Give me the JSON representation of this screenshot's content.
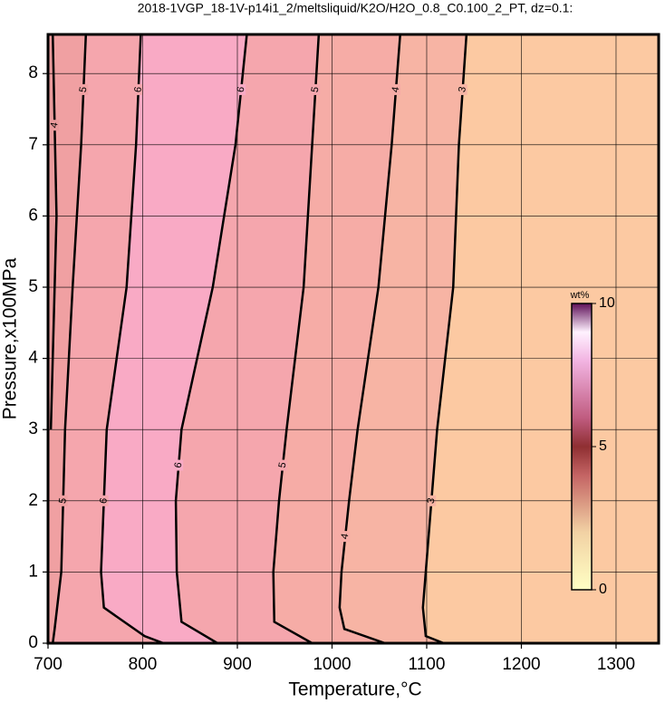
{
  "chart_data": {
    "type": "contour",
    "title": "2018-1VGP_18-1V-p14i1_2/meltsliquid/K2O/H2O_0.8_C0.100_2_PT, dz=0.1:",
    "x_label": "Temperature,°C",
    "y_label": "Pressure,x100MPa",
    "xlim": [
      700,
      1345
    ],
    "ylim": [
      0,
      8.55
    ],
    "xticks": [
      700,
      800,
      900,
      1000,
      1100,
      1200,
      1300
    ],
    "yticks": [
      0,
      1,
      2,
      3,
      4,
      5,
      6,
      7,
      8
    ],
    "grid": true,
    "background": "#fcc9a2",
    "line_color": "#000000",
    "contours": [
      {
        "level": 3,
        "fill": "#f7b4a4",
        "x": [
          1118,
          1099,
          1096,
          1099,
          1111,
          1128,
          1134,
          1142
        ],
        "y": [
          0,
          0.1,
          0.5,
          1,
          3,
          5,
          7,
          8.55
        ]
      },
      {
        "level": 4,
        "fill": "#f6aca6",
        "x": [
          1056,
          1013,
          1008,
          1010,
          1018,
          1027,
          1049,
          1063,
          1072
        ],
        "y": [
          0,
          0.2,
          0.5,
          1,
          2,
          3,
          5,
          7,
          8.55
        ]
      },
      {
        "level": 5,
        "fill": "#f5a6ad",
        "x": [
          979,
          939,
          938,
          944,
          952,
          970,
          979,
          986
        ],
        "y": [
          0,
          0.3,
          1,
          2,
          3,
          5,
          7,
          8.55
        ]
      },
      {
        "level": 6,
        "fill": "#f9aac5",
        "x": [
          879,
          841,
          836,
          835,
          841,
          874,
          898,
          910
        ],
        "y": [
          0,
          0.3,
          1,
          2,
          3,
          5,
          7,
          8.55
        ]
      },
      {
        "level": 6,
        "fill": "#f5a6ad",
        "x": [
          822,
          802,
          759,
          756,
          762,
          783,
          793,
          798
        ],
        "y": [
          0,
          0.1,
          0.5,
          1,
          3,
          5,
          7,
          8.55
        ]
      },
      {
        "level": 5,
        "fill": "#f0a0a2",
        "x": [
          705,
          707,
          714,
          718,
          726,
          735,
          740
        ],
        "y": [
          0,
          0.2,
          1,
          3,
          5,
          7,
          8.55
        ]
      },
      {
        "level": 4,
        "fill": "#e99a9c",
        "x": [
          703,
          709,
          705
        ],
        "y": [
          3,
          6,
          8.55
        ]
      }
    ],
    "colorbar": {
      "label": "wt%",
      "lim": [
        0,
        10
      ],
      "ticks": [
        0,
        5,
        10
      ],
      "stops": [
        {
          "value": 0,
          "color": "#ffffc4"
        },
        {
          "value": 2,
          "color": "#f2d2a4"
        },
        {
          "value": 4,
          "color": "#c46464"
        },
        {
          "value": 5,
          "color": "#8f2f32"
        },
        {
          "value": 6,
          "color": "#c05c80"
        },
        {
          "value": 8,
          "color": "#f2b4e2"
        },
        {
          "value": 9,
          "color": "#fff2ff"
        },
        {
          "value": 10,
          "color": "#5e1058"
        }
      ]
    }
  }
}
